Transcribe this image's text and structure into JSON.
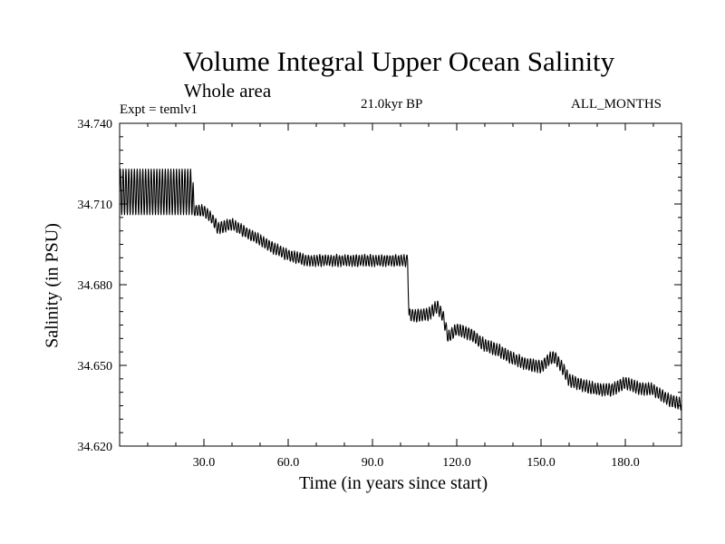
{
  "chart_data": {
    "type": "line",
    "title": "Volume Integral Upper Ocean Salinity",
    "subtitle": "Whole area",
    "expt_label": "Expt = temlv1",
    "period_label": "21.0kyr BP",
    "months_label": "ALL_MONTHS",
    "xlabel": "Time (in years since start)",
    "ylabel": "Salinity (in PSU)",
    "xlim": [
      0,
      200
    ],
    "ylim": [
      34.62,
      34.74
    ],
    "x_ticks": [
      30,
      60,
      90,
      120,
      150,
      180
    ],
    "x_tick_labels": [
      "30.0",
      "60.0",
      "90.0",
      "120.0",
      "150.0",
      "180.0"
    ],
    "y_ticks": [
      34.62,
      34.65,
      34.68,
      34.71,
      34.74
    ],
    "y_tick_labels": [
      "34.620",
      "34.650",
      "34.680",
      "34.710",
      "34.740"
    ],
    "grid": false,
    "series": [
      {
        "name": "salinity",
        "color": "#000000",
        "trend": {
          "x": [
            0,
            26,
            26.5,
            30,
            33,
            35,
            40,
            45,
            50,
            55,
            60,
            65,
            66,
            102.5,
            103,
            105,
            110,
            113,
            115,
            117,
            120,
            125,
            130,
            135,
            140,
            145,
            150,
            153,
            155,
            158,
            160,
            165,
            170,
            175,
            180,
            185,
            190,
            195,
            200
          ],
          "y": [
            34.7145,
            34.7145,
            34.7075,
            34.7075,
            34.7045,
            34.701,
            34.7025,
            34.6995,
            34.6965,
            34.6935,
            34.691,
            34.6895,
            34.689,
            34.689,
            34.669,
            34.6685,
            34.669,
            34.672,
            34.6685,
            34.6605,
            34.6635,
            34.6615,
            34.6575,
            34.6555,
            34.6525,
            34.6505,
            34.6495,
            34.6525,
            34.653,
            34.6485,
            34.6445,
            34.6425,
            34.641,
            34.641,
            34.6435,
            34.6415,
            34.641,
            34.6375,
            34.6355
          ]
        },
        "oscillation_amplitude": {
          "x": [
            0,
            26,
            26.5,
            66,
            102.5,
            103,
            200
          ],
          "y": [
            0.0085,
            0.0085,
            0.002,
            0.002,
            0.002,
            0.0022,
            0.0022
          ]
        }
      }
    ]
  }
}
